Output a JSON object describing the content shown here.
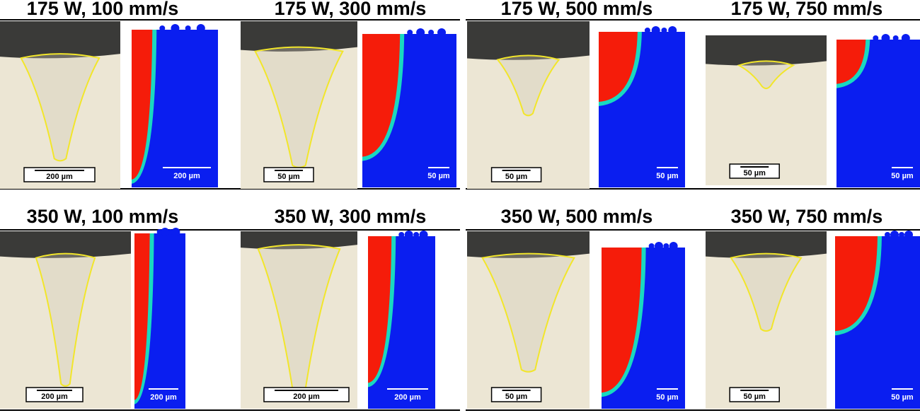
{
  "panels": [
    {
      "title": "175 W, 100 mm/s",
      "micrograph_scale": "200 µm",
      "simulation_scale": "200 µm"
    },
    {
      "title": "175 W, 300 mm/s",
      "micrograph_scale": "50 µm",
      "simulation_scale": "50 µm"
    },
    {
      "title": "175 W, 500 mm/s",
      "micrograph_scale": "50 µm",
      "simulation_scale": "50 µm"
    },
    {
      "title": "175 W, 750 mm/s",
      "micrograph_scale": "50 µm",
      "simulation_scale": "50 µm"
    },
    {
      "title": "350 W, 100 mm/s",
      "micrograph_scale": "200 µm",
      "simulation_scale": "200 µm"
    },
    {
      "title": "350 W, 300 mm/s",
      "micrograph_scale": "200 µm",
      "simulation_scale": "200 µm"
    },
    {
      "title": "350 W, 500 mm/s",
      "micrograph_scale": "50 µm",
      "simulation_scale": "50 µm"
    },
    {
      "title": "350 W, 750 mm/s",
      "micrograph_scale": "50 µm",
      "simulation_scale": "50 µm"
    }
  ]
}
